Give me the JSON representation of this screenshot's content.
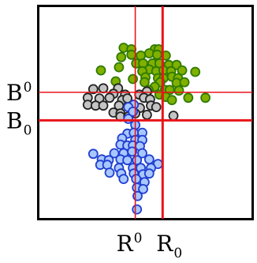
{
  "chart_data": {
    "type": "scatter",
    "title": "",
    "xlabel": "",
    "ylabel": "",
    "xlim": [
      0,
      100
    ],
    "ylim": [
      0,
      100
    ],
    "grid": false,
    "series": [
      {
        "color": "#80b000",
        "stroke": "#2f7a00",
        "points": [
          [
            39.7,
            80.7
          ],
          [
            43.4,
            80.0
          ],
          [
            54.4,
            80.0
          ],
          [
            56.2,
            80.0
          ],
          [
            38.6,
            76.3
          ],
          [
            43.4,
            77.4
          ],
          [
            47.8,
            77.0
          ],
          [
            51.8,
            78.1
          ],
          [
            55.5,
            77.4
          ],
          [
            59.6,
            77.0
          ],
          [
            29.0,
            70.0
          ],
          [
            37.5,
            71.5
          ],
          [
            45.6,
            73.3
          ],
          [
            48.9,
            73.3
          ],
          [
            53.3,
            73.3
          ],
          [
            56.6,
            73.3
          ],
          [
            61.0,
            72.6
          ],
          [
            64.7,
            72.6
          ],
          [
            51.8,
            70.4
          ],
          [
            48.5,
            69.6
          ],
          [
            55.1,
            69.6
          ],
          [
            58.5,
            70.0
          ],
          [
            62.1,
            69.6
          ],
          [
            67.3,
            70.0
          ],
          [
            73.5,
            69.3
          ],
          [
            50.0,
            66.7
          ],
          [
            55.9,
            66.3
          ],
          [
            58.5,
            66.3
          ],
          [
            62.5,
            67.0
          ],
          [
            65.4,
            66.3
          ],
          [
            36.0,
            64.8
          ],
          [
            44.1,
            65.9
          ],
          [
            49.6,
            64.4
          ],
          [
            57.0,
            64.4
          ],
          [
            64.7,
            64.1
          ],
          [
            68.4,
            64.4
          ],
          [
            54.4,
            62.2
          ],
          [
            51.5,
            60.7
          ],
          [
            59.2,
            60.7
          ],
          [
            61.4,
            60.7
          ],
          [
            65.8,
            60.4
          ],
          [
            56.6,
            58.5
          ],
          [
            59.6,
            57.4
          ],
          [
            70.2,
            57.0
          ],
          [
            78.3,
            57.0
          ],
          [
            62.5,
            55.9
          ]
        ]
      },
      {
        "color": "#c4c4c4",
        "stroke": "#222222",
        "points": [
          [
            25.4,
            61.1
          ],
          [
            30.1,
            61.5
          ],
          [
            37.1,
            61.5
          ],
          [
            34.9,
            58.9
          ],
          [
            40.4,
            58.5
          ],
          [
            47.1,
            58.5
          ],
          [
            50.7,
            60.0
          ],
          [
            22.8,
            57.0
          ],
          [
            28.3,
            56.7
          ],
          [
            33.1,
            57.0
          ],
          [
            39.0,
            55.9
          ],
          [
            41.5,
            56.7
          ],
          [
            49.3,
            57.0
          ],
          [
            52.2,
            56.3
          ],
          [
            22.8,
            53.7
          ],
          [
            26.5,
            53.3
          ],
          [
            30.1,
            53.3
          ],
          [
            37.5,
            53.3
          ],
          [
            44.5,
            53.7
          ],
          [
            47.4,
            52.2
          ],
          [
            52.6,
            53.3
          ],
          [
            55.1,
            52.6
          ],
          [
            34.9,
            50.0
          ],
          [
            38.2,
            49.6
          ],
          [
            45.2,
            49.6
          ],
          [
            50.7,
            48.9
          ],
          [
            38.2,
            48.1
          ],
          [
            41.9,
            48.1
          ],
          [
            63.2,
            48.5
          ]
        ]
      },
      {
        "color": "#a9c7ff",
        "stroke": "#1f3fd0",
        "points": [
          [
            44.5,
            53.7
          ],
          [
            41.9,
            52.6
          ],
          [
            44.1,
            50.4
          ],
          [
            41.9,
            47.0
          ],
          [
            45.2,
            44.1
          ],
          [
            41.5,
            40.0
          ],
          [
            44.5,
            40.4
          ],
          [
            48.5,
            40.4
          ],
          [
            39.0,
            37.8
          ],
          [
            45.2,
            37.0
          ],
          [
            48.5,
            37.0
          ],
          [
            38.2,
            34.8
          ],
          [
            41.5,
            34.4
          ],
          [
            44.1,
            34.4
          ],
          [
            47.4,
            34.1
          ],
          [
            35.3,
            30.7
          ],
          [
            39.7,
            30.7
          ],
          [
            43.7,
            31.5
          ],
          [
            48.5,
            30.7
          ],
          [
            25.4,
            30.4
          ],
          [
            29.4,
            27.8
          ],
          [
            32.7,
            27.4
          ],
          [
            38.2,
            27.8
          ],
          [
            41.5,
            27.4
          ],
          [
            46.0,
            27.4
          ],
          [
            51.8,
            27.8
          ],
          [
            55.9,
            25.6
          ],
          [
            28.7,
            25.2
          ],
          [
            32.0,
            25.2
          ],
          [
            37.5,
            23.7
          ],
          [
            44.1,
            23.7
          ],
          [
            47.8,
            23.7
          ],
          [
            52.6,
            23.7
          ],
          [
            33.1,
            21.5
          ],
          [
            38.6,
            21.1
          ],
          [
            44.5,
            21.1
          ],
          [
            48.9,
            20.7
          ],
          [
            51.8,
            21.1
          ],
          [
            39.7,
            18.5
          ],
          [
            45.6,
            18.5
          ],
          [
            49.6,
            17.0
          ],
          [
            46.0,
            14.4
          ],
          [
            48.9,
            13.7
          ],
          [
            46.3,
            10.4
          ],
          [
            46.0,
            4.1
          ]
        ]
      }
    ],
    "reference_lines": {
      "vertical": [
        {
          "x": 45.2,
          "label": "R",
          "sup": "0",
          "sub": "",
          "weight": "thin"
        },
        {
          "x": 58.1,
          "label": "R",
          "sup": "",
          "sub": "0",
          "weight": "thick"
        }
      ],
      "horizontal": [
        {
          "y": 59.6,
          "label": "B",
          "sup": "0",
          "sub": "",
          "weight": "thin"
        },
        {
          "y": 46.3,
          "label": "B",
          "sup": "",
          "sub": "0",
          "weight": "thick"
        }
      ]
    }
  }
}
